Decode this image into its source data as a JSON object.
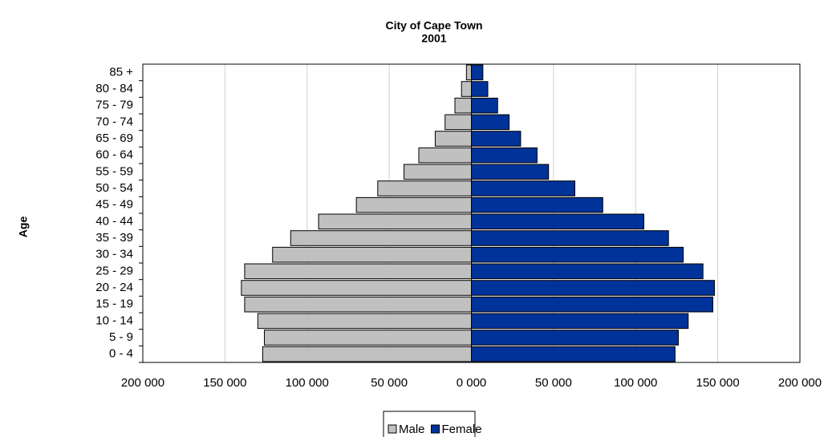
{
  "chart_data": {
    "type": "pyramid",
    "title": "City of Cape Town",
    "subtitle": "2001",
    "y_label": "Age",
    "categories": [
      "0 - 4",
      "5 - 9",
      "10 - 14",
      "15 - 19",
      "20 - 24",
      "25 - 29",
      "30 - 34",
      "35 - 39",
      "40 - 44",
      "45 - 49",
      "50 - 54",
      "55 - 59",
      "60 - 64",
      "65 - 69",
      "70 - 74",
      "75 - 79",
      "80 - 84",
      "85 +"
    ],
    "series": [
      {
        "name": "Male",
        "color": "#c0c0c0",
        "values": [
          -127000,
          -126000,
          -130000,
          -138000,
          -140000,
          -138000,
          -121000,
          -110000,
          -93000,
          -70000,
          -57000,
          -41000,
          -32000,
          -22000,
          -16000,
          -10000,
          -6000,
          -3000
        ]
      },
      {
        "name": "Female",
        "color": "#003399",
        "values": [
          124000,
          126000,
          132000,
          147000,
          148000,
          141000,
          129000,
          120000,
          105000,
          80000,
          63000,
          47000,
          40000,
          30000,
          23000,
          16000,
          10000,
          7000
        ]
      }
    ],
    "xlim": [
      -200000,
      200000
    ],
    "xticks": [
      {
        "value": -200000,
        "label": "200 000"
      },
      {
        "value": -150000,
        "label": "150 000"
      },
      {
        "value": -100000,
        "label": "100 000"
      },
      {
        "value": -50000,
        "label": "50 000"
      },
      {
        "value": 0,
        "label": "0 000"
      },
      {
        "value": 50000,
        "label": "50 000"
      },
      {
        "value": 100000,
        "label": "100 000"
      },
      {
        "value": 150000,
        "label": "150 000"
      },
      {
        "value": 200000,
        "label": "200 000"
      }
    ],
    "grid": true,
    "legend": "bottom"
  }
}
